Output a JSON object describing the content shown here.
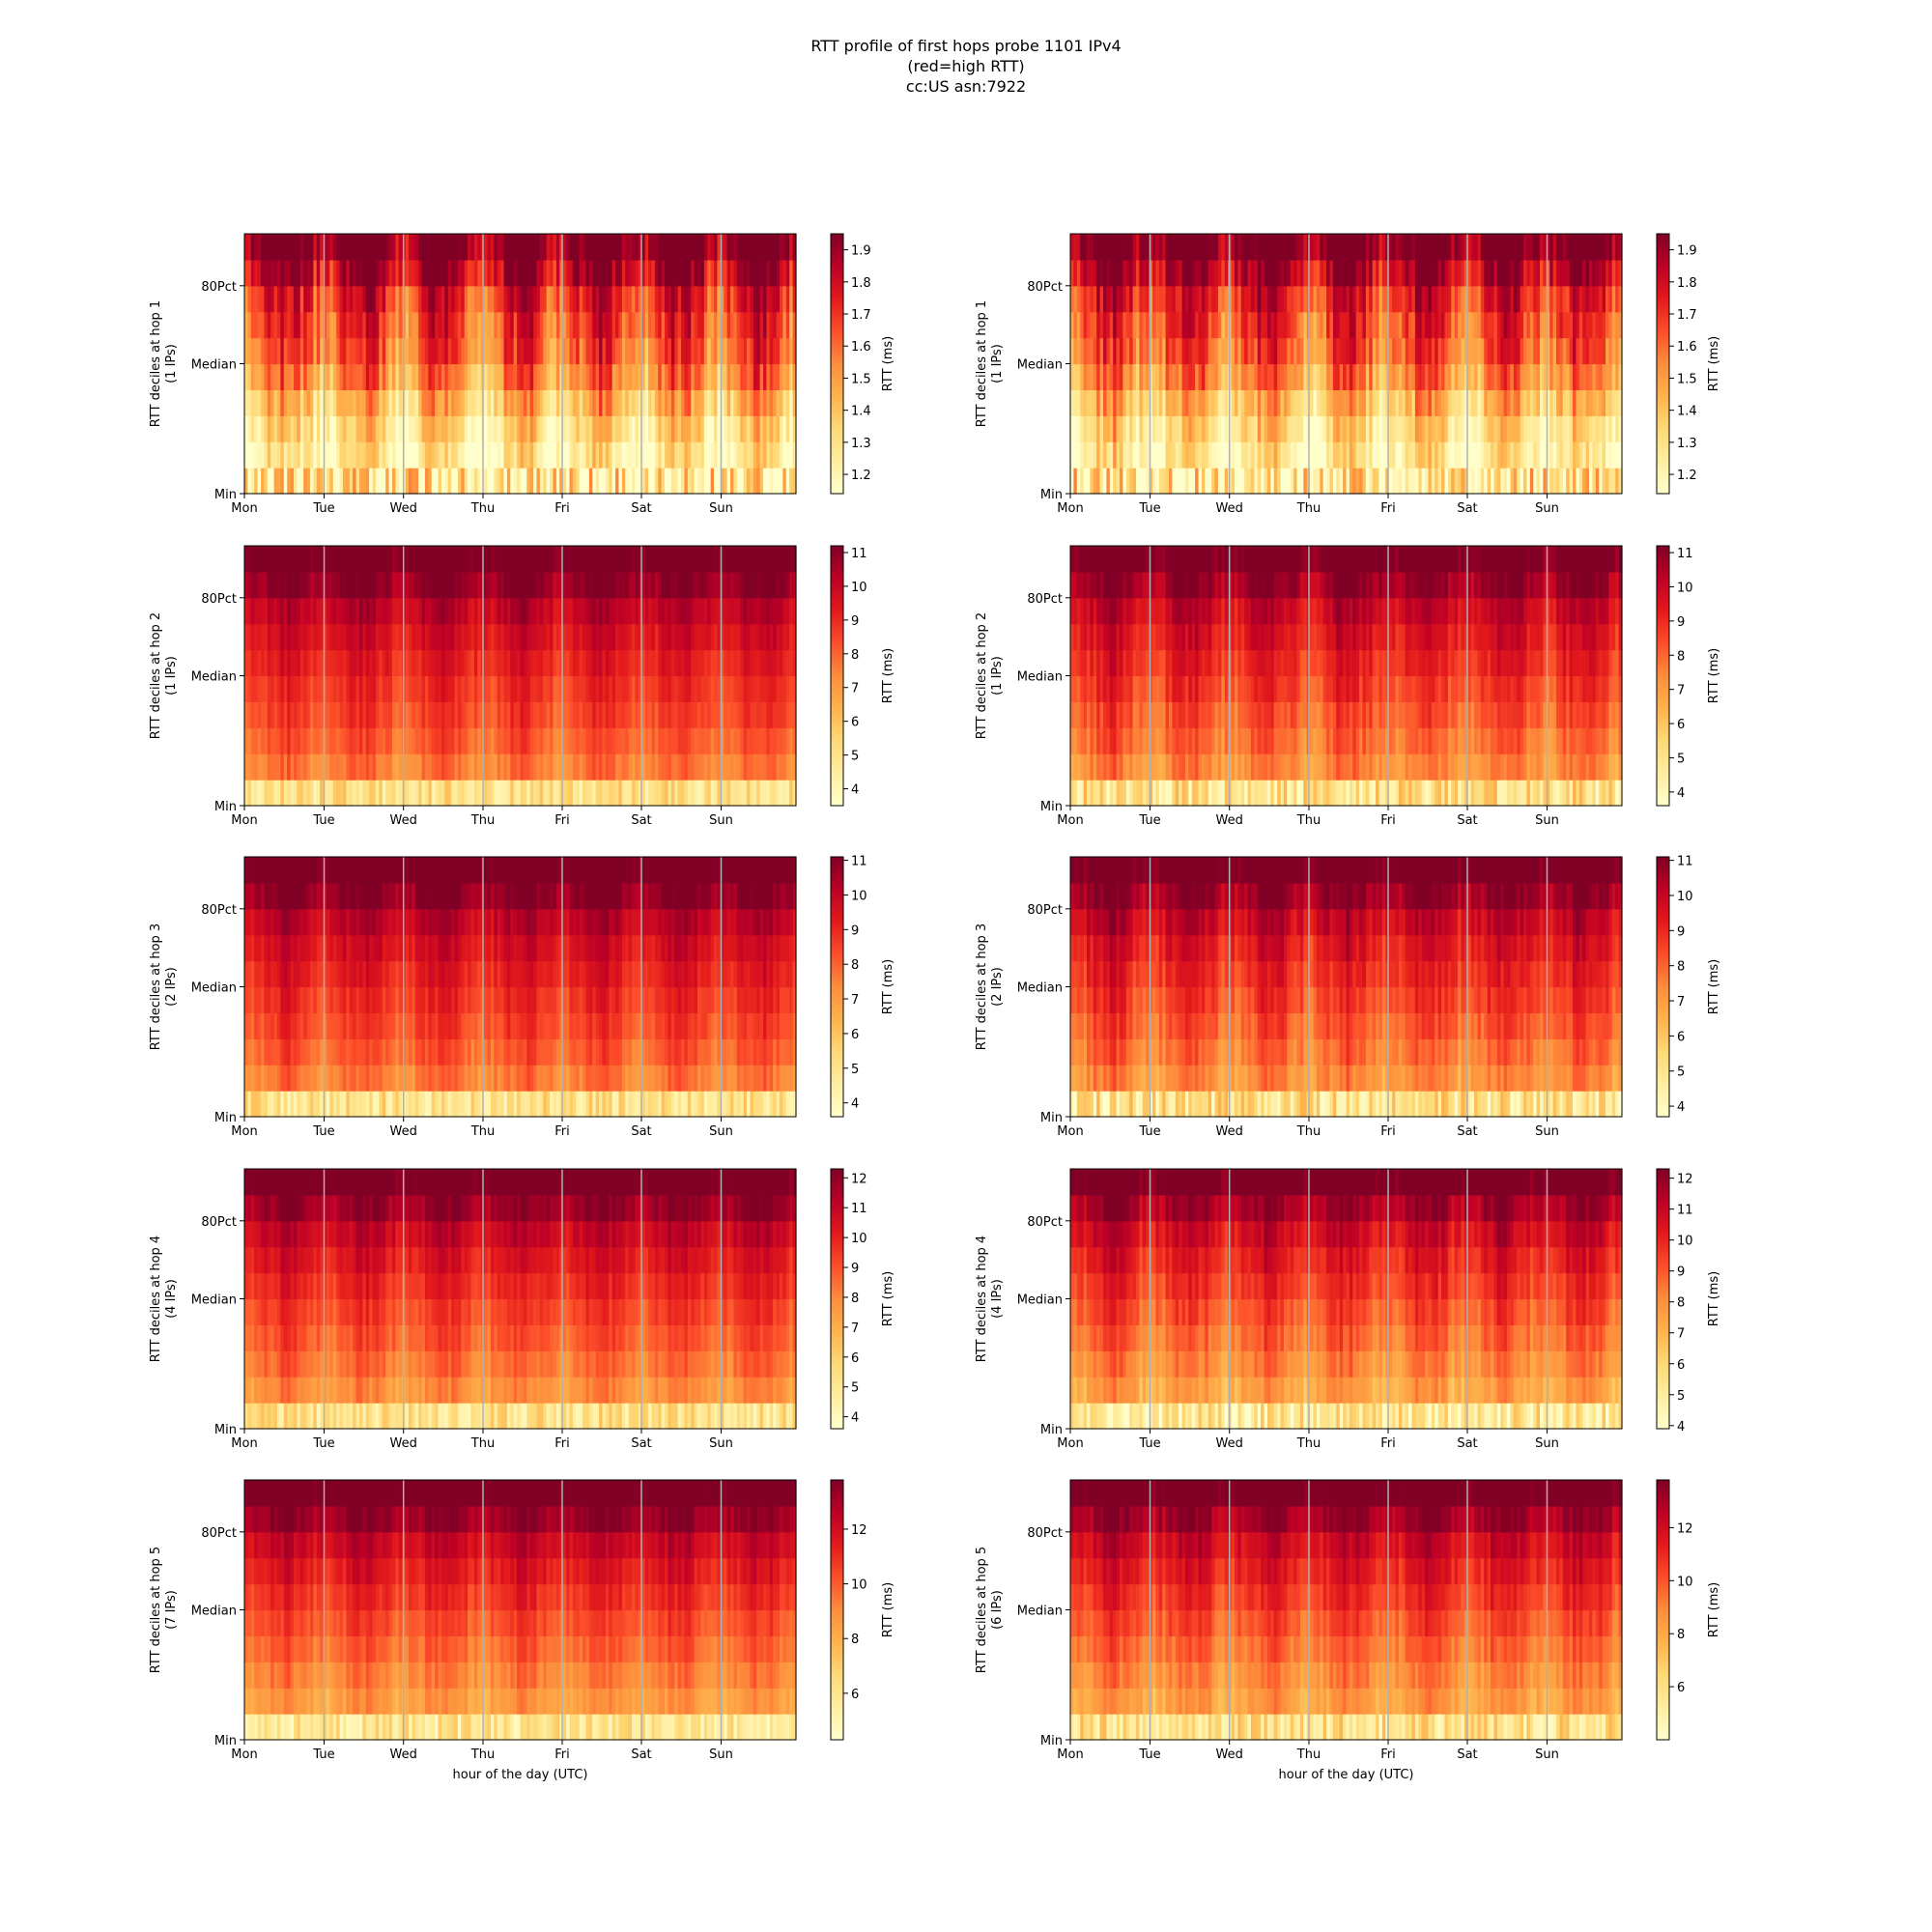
{
  "figure": {
    "title_lines": [
      "RTT profile of first hops probe 1101 IPv4",
      "(red=high RTT)",
      "cc:US asn:7922"
    ]
  },
  "colors": {
    "colormap": [
      "#ffffcc",
      "#ffeda0",
      "#fed976",
      "#feb24c",
      "#fd8d3c",
      "#fc4e2a",
      "#e31a1c",
      "#bd0026",
      "#800026"
    ],
    "day_gridline": "#b0b0b0"
  },
  "chart_data": [
    {
      "type": "heatmap",
      "hop": 1,
      "ylabel_lines": [
        "RTT deciles at hop 1",
        "(1 IPs)"
      ],
      "xlabel": "",
      "x_ticks": [
        "Mon",
        "Tue",
        "Wed",
        "Thu",
        "Fri",
        "Sat",
        "Sun"
      ],
      "y_ticks": [
        "Min",
        "Median",
        "80Pct"
      ],
      "colorbar": {
        "label": "RTT (ms)",
        "range": [
          1.14,
          1.95
        ],
        "ticks": [
          1.2,
          1.3,
          1.4,
          1.5,
          1.6,
          1.7,
          1.8,
          1.9
        ]
      },
      "deciles": [
        1.18,
        1.25,
        1.32,
        1.42,
        1.55,
        1.63,
        1.68,
        1.74,
        1.86,
        1.98
      ],
      "variability": 0.3
    },
    {
      "type": "heatmap",
      "hop": 1,
      "ylabel_lines": [
        "RTT deciles at hop 1",
        "(1 IPs)"
      ],
      "xlabel": "",
      "x_ticks": [
        "Mon",
        "Tue",
        "Wed",
        "Thu",
        "Fri",
        "Sat",
        "Sun"
      ],
      "y_ticks": [
        "Min",
        "Median",
        "80Pct"
      ],
      "colorbar": {
        "label": "RTT (ms)",
        "range": [
          1.14,
          1.95
        ],
        "ticks": [
          1.2,
          1.3,
          1.4,
          1.5,
          1.6,
          1.7,
          1.8,
          1.9
        ]
      },
      "deciles": [
        1.18,
        1.25,
        1.32,
        1.42,
        1.55,
        1.63,
        1.68,
        1.74,
        1.86,
        1.98
      ],
      "variability": 0.3
    },
    {
      "type": "heatmap",
      "hop": 2,
      "ylabel_lines": [
        "RTT deciles at hop 2",
        "(1 IPs)"
      ],
      "xlabel": "",
      "x_ticks": [
        "Mon",
        "Tue",
        "Wed",
        "Thu",
        "Fri",
        "Sat",
        "Sun"
      ],
      "y_ticks": [
        "Min",
        "Median",
        "80Pct"
      ],
      "colorbar": {
        "label": "RTT (ms)",
        "range": [
          3.5,
          11.2
        ],
        "ticks": [
          4,
          5,
          6,
          7,
          8,
          9,
          10,
          11
        ]
      },
      "deciles": [
        4.8,
        7.6,
        8.1,
        8.5,
        8.8,
        9.2,
        9.6,
        10.1,
        10.9,
        11.6
      ],
      "variability": 1.0
    },
    {
      "type": "heatmap",
      "hop": 2,
      "ylabel_lines": [
        "RTT deciles at hop 2",
        "(1 IPs)"
      ],
      "xlabel": "",
      "x_ticks": [
        "Mon",
        "Tue",
        "Wed",
        "Thu",
        "Fri",
        "Sat",
        "Sun"
      ],
      "y_ticks": [
        "Min",
        "Median",
        "80Pct"
      ],
      "colorbar": {
        "label": "RTT (ms)",
        "range": [
          3.6,
          11.2
        ],
        "ticks": [
          4,
          5,
          6,
          7,
          8,
          9,
          10,
          11
        ]
      },
      "deciles": [
        4.8,
        7.4,
        7.9,
        8.3,
        8.7,
        9.1,
        9.5,
        10.0,
        10.8,
        11.6
      ],
      "variability": 1.3
    },
    {
      "type": "heatmap",
      "hop": 3,
      "ylabel_lines": [
        "RTT deciles at hop 3",
        "(2 IPs)"
      ],
      "xlabel": "",
      "x_ticks": [
        "Mon",
        "Tue",
        "Wed",
        "Thu",
        "Fri",
        "Sat",
        "Sun"
      ],
      "y_ticks": [
        "Min",
        "Median",
        "80Pct"
      ],
      "colorbar": {
        "label": "RTT (ms)",
        "range": [
          3.6,
          11.1
        ],
        "ticks": [
          4,
          5,
          6,
          7,
          8,
          9,
          10,
          11
        ]
      },
      "deciles": [
        4.8,
        7.6,
        8.1,
        8.5,
        8.8,
        9.2,
        9.6,
        10.1,
        10.9,
        11.6
      ],
      "variability": 1.0
    },
    {
      "type": "heatmap",
      "hop": 3,
      "ylabel_lines": [
        "RTT deciles at hop 3",
        "(2 IPs)"
      ],
      "xlabel": "",
      "x_ticks": [
        "Mon",
        "Tue",
        "Wed",
        "Thu",
        "Fri",
        "Sat",
        "Sun"
      ],
      "y_ticks": [
        "Min",
        "Median",
        "80Pct"
      ],
      "colorbar": {
        "label": "RTT (ms)",
        "range": [
          3.7,
          11.1
        ],
        "ticks": [
          4,
          5,
          6,
          7,
          8,
          9,
          10,
          11
        ]
      },
      "deciles": [
        4.8,
        7.3,
        7.8,
        8.2,
        8.6,
        9.0,
        9.4,
        9.9,
        10.7,
        11.6
      ],
      "variability": 1.3
    },
    {
      "type": "heatmap",
      "hop": 4,
      "ylabel_lines": [
        "RTT deciles at hop 4",
        "(4 IPs)"
      ],
      "xlabel": "",
      "x_ticks": [
        "Mon",
        "Tue",
        "Wed",
        "Thu",
        "Fri",
        "Sat",
        "Sun"
      ],
      "y_ticks": [
        "Min",
        "Median",
        "80Pct"
      ],
      "colorbar": {
        "label": "RTT (ms)",
        "range": [
          3.6,
          12.3
        ],
        "ticks": [
          4,
          5,
          6,
          7,
          8,
          9,
          10,
          11,
          12
        ]
      },
      "deciles": [
        5.0,
        7.8,
        8.4,
        8.9,
        9.3,
        9.8,
        10.3,
        10.9,
        11.8,
        12.8
      ],
      "variability": 1.1
    },
    {
      "type": "heatmap",
      "hop": 4,
      "ylabel_lines": [
        "RTT deciles at hop 4",
        "(4 IPs)"
      ],
      "xlabel": "",
      "x_ticks": [
        "Mon",
        "Tue",
        "Wed",
        "Thu",
        "Fri",
        "Sat",
        "Sun"
      ],
      "y_ticks": [
        "Min",
        "Median",
        "80Pct"
      ],
      "colorbar": {
        "label": "RTT (ms)",
        "range": [
          3.9,
          12.3
        ],
        "ticks": [
          4,
          5,
          6,
          7,
          8,
          9,
          10,
          11,
          12
        ]
      },
      "deciles": [
        5.0,
        7.5,
        8.1,
        8.6,
        9.1,
        9.6,
        10.1,
        10.7,
        11.6,
        12.8
      ],
      "variability": 1.4
    },
    {
      "type": "heatmap",
      "hop": 5,
      "ylabel_lines": [
        "RTT deciles at hop 5",
        "(7 IPs)"
      ],
      "xlabel": "hour of the day (UTC)",
      "x_ticks": [
        "Mon",
        "Tue",
        "Wed",
        "Thu",
        "Fri",
        "Sat",
        "Sun"
      ],
      "y_ticks": [
        "Min",
        "Median",
        "80Pct"
      ],
      "colorbar": {
        "label": "RTT (ms)",
        "range": [
          4.3,
          13.8
        ],
        "ticks": [
          6,
          8,
          10,
          12
        ]
      },
      "deciles": [
        5.6,
        8.6,
        9.2,
        9.8,
        10.3,
        10.9,
        11.5,
        12.2,
        13.3,
        14.5
      ],
      "variability": 1.2
    },
    {
      "type": "heatmap",
      "hop": 5,
      "ylabel_lines": [
        "RTT deciles at hop 5",
        "(6 IPs)"
      ],
      "xlabel": "hour of the day (UTC)",
      "x_ticks": [
        "Mon",
        "Tue",
        "Wed",
        "Thu",
        "Fri",
        "Sat",
        "Sun"
      ],
      "y_ticks": [
        "Min",
        "Median",
        "80Pct"
      ],
      "colorbar": {
        "label": "RTT (ms)",
        "range": [
          4.0,
          13.8
        ],
        "ticks": [
          6,
          8,
          10,
          12
        ]
      },
      "deciles": [
        5.6,
        8.3,
        8.9,
        9.5,
        10.1,
        10.7,
        11.3,
        12.0,
        13.1,
        14.5
      ],
      "variability": 1.5
    }
  ]
}
